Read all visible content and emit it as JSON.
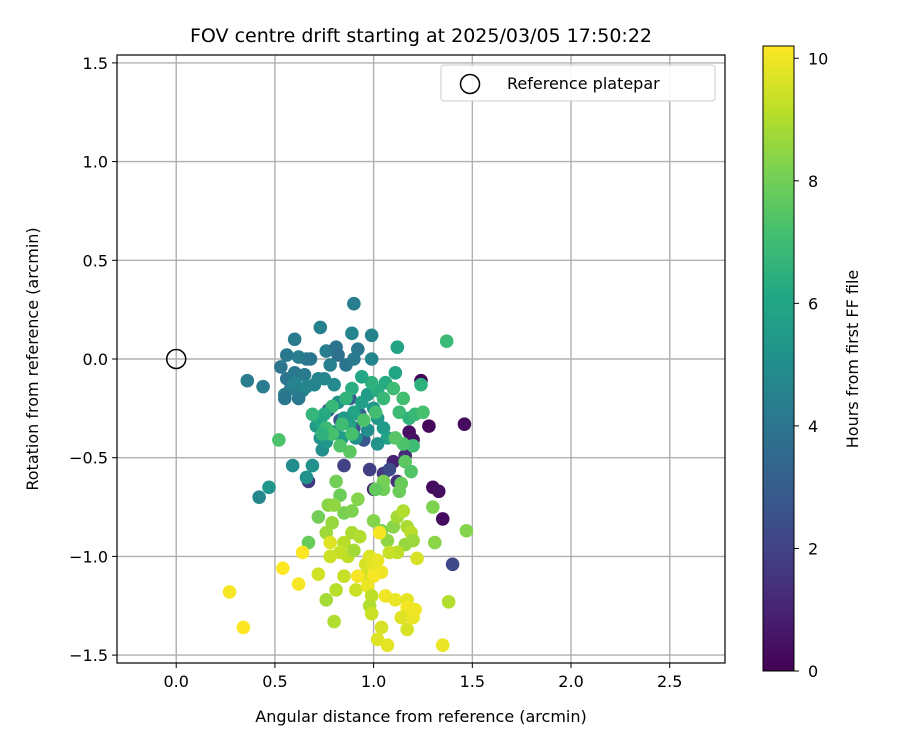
{
  "chart_data": {
    "type": "scatter",
    "title": "FOV centre drift starting at 2025/03/05 17:50:22",
    "xlabel": "Angular distance from reference (arcmin)",
    "ylabel": "Rotation from reference (arcmin)",
    "xlim": [
      -0.3,
      2.78
    ],
    "ylim": [
      -1.54,
      1.54
    ],
    "xticks": [
      0.0,
      0.5,
      1.0,
      1.5,
      2.0,
      2.5
    ],
    "xtick_labels": [
      "0.0",
      "0.5",
      "1.0",
      "1.5",
      "2.0",
      "2.5"
    ],
    "yticks": [
      -1.5,
      -1.0,
      -0.5,
      0.0,
      0.5,
      1.0,
      1.5
    ],
    "ytick_labels": [
      "−1.5",
      "−1.0",
      "−0.5",
      "0.0",
      "0.5",
      "1.0",
      "1.5"
    ],
    "grid": true,
    "legend": {
      "position": "upper right",
      "entries": [
        "Reference platepar"
      ]
    },
    "reference_point": {
      "x": 0.0,
      "y": 0.0,
      "marker": "open-circle",
      "color": "#000000"
    },
    "colorbar": {
      "label": "Hours from first FF file",
      "colormap": "viridis",
      "range": [
        0,
        10.2
      ],
      "ticks": [
        0,
        2,
        4,
        6,
        8,
        10
      ],
      "tick_labels": [
        "0",
        "2",
        "4",
        "6",
        "8",
        "10"
      ]
    },
    "points": [
      {
        "x": 1.24,
        "y": -0.11,
        "h": 0.1
      },
      {
        "x": 1.28,
        "y": -0.34,
        "h": 0.2
      },
      {
        "x": 1.46,
        "y": -0.33,
        "h": 0.3
      },
      {
        "x": 1.3,
        "y": -0.65,
        "h": 0.3
      },
      {
        "x": 1.33,
        "y": -0.67,
        "h": 0.4
      },
      {
        "x": 1.35,
        "y": -0.81,
        "h": 0.3
      },
      {
        "x": 1.18,
        "y": -0.37,
        "h": 0.4
      },
      {
        "x": 1.2,
        "y": -0.41,
        "h": 0.5
      },
      {
        "x": 1.1,
        "y": -0.52,
        "h": 1.0
      },
      {
        "x": 1.16,
        "y": -0.49,
        "h": 1.2
      },
      {
        "x": 1.0,
        "y": -0.66,
        "h": 1.0
      },
      {
        "x": 1.12,
        "y": -0.62,
        "h": 1.5
      },
      {
        "x": 1.05,
        "y": -0.58,
        "h": 1.6
      },
      {
        "x": 0.98,
        "y": -0.56,
        "h": 1.9
      },
      {
        "x": 0.85,
        "y": -0.54,
        "h": 2.0
      },
      {
        "x": 0.67,
        "y": -0.62,
        "h": 1.7
      },
      {
        "x": 1.4,
        "y": -1.04,
        "h": 2.2
      },
      {
        "x": 1.08,
        "y": -0.56,
        "h": 2.3
      },
      {
        "x": 0.9,
        "y": -0.35,
        "h": 2.5
      },
      {
        "x": 0.83,
        "y": -0.31,
        "h": 2.6
      },
      {
        "x": 0.95,
        "y": -0.41,
        "h": 2.8
      },
      {
        "x": 0.77,
        "y": -0.26,
        "h": 3.0
      },
      {
        "x": 0.88,
        "y": -0.2,
        "h": 3.1
      },
      {
        "x": 0.93,
        "y": -0.28,
        "h": 3.2
      },
      {
        "x": 0.9,
        "y": 0.28,
        "h": 4.3
      },
      {
        "x": 0.99,
        "y": 0.12,
        "h": 4.5
      },
      {
        "x": 0.89,
        "y": 0.13,
        "h": 4.6
      },
      {
        "x": 0.73,
        "y": 0.16,
        "h": 4.4
      },
      {
        "x": 0.6,
        "y": 0.1,
        "h": 4.2
      },
      {
        "x": 0.56,
        "y": 0.02,
        "h": 4.1
      },
      {
        "x": 0.62,
        "y": 0.01,
        "h": 4.3
      },
      {
        "x": 0.66,
        "y": 0.0,
        "h": 4.2
      },
      {
        "x": 0.53,
        "y": -0.04,
        "h": 4.0
      },
      {
        "x": 0.56,
        "y": -0.1,
        "h": 4.0
      },
      {
        "x": 0.6,
        "y": -0.07,
        "h": 4.1
      },
      {
        "x": 0.65,
        "y": -0.08,
        "h": 4.2
      },
      {
        "x": 0.68,
        "y": 0.0,
        "h": 4.0
      },
      {
        "x": 0.76,
        "y": 0.04,
        "h": 4.3
      },
      {
        "x": 0.81,
        "y": 0.06,
        "h": 3.9
      },
      {
        "x": 0.82,
        "y": 0.02,
        "h": 3.8
      },
      {
        "x": 0.86,
        "y": -0.03,
        "h": 4.0
      },
      {
        "x": 0.92,
        "y": 0.05,
        "h": 4.1
      },
      {
        "x": 0.99,
        "y": 0.0,
        "h": 4.6
      },
      {
        "x": 0.9,
        "y": 0.0,
        "h": 4.2
      },
      {
        "x": 0.78,
        "y": -0.03,
        "h": 4.4
      },
      {
        "x": 0.72,
        "y": -0.1,
        "h": 4.5
      },
      {
        "x": 0.7,
        "y": -0.13,
        "h": 4.6
      },
      {
        "x": 0.64,
        "y": -0.16,
        "h": 4.4
      },
      {
        "x": 0.58,
        "y": -0.15,
        "h": 4.3
      },
      {
        "x": 0.55,
        "y": -0.18,
        "h": 4.2
      },
      {
        "x": 0.55,
        "y": -0.2,
        "h": 4.0
      },
      {
        "x": 0.62,
        "y": -0.2,
        "h": 4.1
      },
      {
        "x": 0.6,
        "y": -0.12,
        "h": 4.5
      },
      {
        "x": 0.66,
        "y": -0.14,
        "h": 4.6
      },
      {
        "x": 0.75,
        "y": -0.1,
        "h": 4.7
      },
      {
        "x": 0.8,
        "y": -0.13,
        "h": 4.8
      },
      {
        "x": 0.36,
        "y": -0.11,
        "h": 4.3
      },
      {
        "x": 0.44,
        "y": -0.14,
        "h": 4.2
      },
      {
        "x": 0.42,
        "y": -0.7,
        "h": 4.7
      },
      {
        "x": 0.47,
        "y": -0.65,
        "h": 5.3
      },
      {
        "x": 0.59,
        "y": -0.54,
        "h": 4.9
      },
      {
        "x": 0.66,
        "y": -0.6,
        "h": 5.1
      },
      {
        "x": 0.69,
        "y": -0.54,
        "h": 5.1
      },
      {
        "x": 0.74,
        "y": -0.46,
        "h": 5.0
      },
      {
        "x": 0.73,
        "y": -0.4,
        "h": 5.2
      },
      {
        "x": 0.71,
        "y": -0.34,
        "h": 5.5
      },
      {
        "x": 0.76,
        "y": -0.42,
        "h": 5.3
      },
      {
        "x": 0.8,
        "y": -0.37,
        "h": 5.4
      },
      {
        "x": 0.84,
        "y": -0.4,
        "h": 5.6
      },
      {
        "x": 0.88,
        "y": -0.33,
        "h": 5.8
      },
      {
        "x": 0.9,
        "y": -0.27,
        "h": 5.9
      },
      {
        "x": 0.94,
        "y": -0.22,
        "h": 5.7
      },
      {
        "x": 0.97,
        "y": -0.18,
        "h": 5.6
      },
      {
        "x": 1.0,
        "y": -0.25,
        "h": 5.4
      },
      {
        "x": 1.02,
        "y": -0.3,
        "h": 5.3
      },
      {
        "x": 1.05,
        "y": -0.35,
        "h": 5.6
      },
      {
        "x": 1.07,
        "y": -0.4,
        "h": 5.8
      },
      {
        "x": 1.02,
        "y": -0.43,
        "h": 5.2
      },
      {
        "x": 0.97,
        "y": -0.36,
        "h": 5.0
      },
      {
        "x": 0.91,
        "y": -0.4,
        "h": 5.1
      },
      {
        "x": 0.85,
        "y": -0.3,
        "h": 5.5
      },
      {
        "x": 0.82,
        "y": -0.22,
        "h": 5.2
      },
      {
        "x": 1.12,
        "y": 0.06,
        "h": 5.9
      },
      {
        "x": 1.11,
        "y": -0.07,
        "h": 6.0
      },
      {
        "x": 1.06,
        "y": -0.12,
        "h": 6.2
      },
      {
        "x": 1.02,
        "y": -0.16,
        "h": 6.3
      },
      {
        "x": 0.99,
        "y": -0.12,
        "h": 6.5
      },
      {
        "x": 0.94,
        "y": -0.09,
        "h": 6.1
      },
      {
        "x": 0.89,
        "y": -0.15,
        "h": 6.4
      },
      {
        "x": 0.86,
        "y": -0.2,
        "h": 6.6
      },
      {
        "x": 0.79,
        "y": -0.24,
        "h": 6.8
      },
      {
        "x": 0.75,
        "y": -0.28,
        "h": 6.2
      },
      {
        "x": 0.73,
        "y": -0.32,
        "h": 6.0
      },
      {
        "x": 0.69,
        "y": -0.28,
        "h": 6.7
      },
      {
        "x": 0.76,
        "y": -0.35,
        "h": 6.9
      },
      {
        "x": 0.84,
        "y": -0.33,
        "h": 7.0
      },
      {
        "x": 0.89,
        "y": -0.38,
        "h": 7.2
      },
      {
        "x": 0.95,
        "y": -0.31,
        "h": 7.3
      },
      {
        "x": 1.01,
        "y": -0.27,
        "h": 7.1
      },
      {
        "x": 1.05,
        "y": -0.2,
        "h": 6.8
      },
      {
        "x": 1.1,
        "y": -0.15,
        "h": 7.0
      },
      {
        "x": 1.15,
        "y": -0.2,
        "h": 7.1
      },
      {
        "x": 1.13,
        "y": -0.27,
        "h": 6.9
      },
      {
        "x": 1.18,
        "y": -0.3,
        "h": 6.6
      },
      {
        "x": 1.21,
        "y": -0.28,
        "h": 6.8
      },
      {
        "x": 1.24,
        "y": -0.13,
        "h": 6.5
      },
      {
        "x": 1.25,
        "y": -0.27,
        "h": 7.2
      },
      {
        "x": 1.37,
        "y": 0.09,
        "h": 6.9
      },
      {
        "x": 1.2,
        "y": -0.44,
        "h": 7.0
      },
      {
        "x": 1.15,
        "y": -0.43,
        "h": 7.3
      },
      {
        "x": 1.11,
        "y": -0.4,
        "h": 7.5
      },
      {
        "x": 1.16,
        "y": -0.52,
        "h": 7.6
      },
      {
        "x": 1.19,
        "y": -0.57,
        "h": 7.4
      },
      {
        "x": 1.14,
        "y": -0.63,
        "h": 7.8
      },
      {
        "x": 1.13,
        "y": -0.67,
        "h": 7.9
      },
      {
        "x": 1.05,
        "y": -0.62,
        "h": 8.1
      },
      {
        "x": 1.05,
        "y": -0.66,
        "h": 8.0
      },
      {
        "x": 1.01,
        "y": -0.66,
        "h": 7.7
      },
      {
        "x": 0.88,
        "y": -0.47,
        "h": 7.6
      },
      {
        "x": 0.83,
        "y": -0.44,
        "h": 7.4
      },
      {
        "x": 0.79,
        "y": -0.38,
        "h": 7.2
      },
      {
        "x": 0.74,
        "y": -0.38,
        "h": 6.5
      },
      {
        "x": 0.52,
        "y": -0.41,
        "h": 7.3
      },
      {
        "x": 0.67,
        "y": -0.93,
        "h": 7.8
      },
      {
        "x": 0.81,
        "y": -0.62,
        "h": 8.0
      },
      {
        "x": 0.83,
        "y": -0.69,
        "h": 7.9
      },
      {
        "x": 0.85,
        "y": -0.78,
        "h": 8.1
      },
      {
        "x": 0.89,
        "y": -0.77,
        "h": 8.2
      },
      {
        "x": 0.92,
        "y": -0.71,
        "h": 8.3
      },
      {
        "x": 0.72,
        "y": -0.8,
        "h": 8.0
      },
      {
        "x": 0.77,
        "y": -0.74,
        "h": 8.4
      },
      {
        "x": 0.8,
        "y": -0.74,
        "h": 8.5
      },
      {
        "x": 0.79,
        "y": -0.83,
        "h": 8.6
      },
      {
        "x": 0.76,
        "y": -0.88,
        "h": 8.7
      },
      {
        "x": 1.0,
        "y": -0.82,
        "h": 8.3
      },
      {
        "x": 1.04,
        "y": -0.87,
        "h": 8.2
      },
      {
        "x": 1.07,
        "y": -0.92,
        "h": 8.5
      },
      {
        "x": 1.1,
        "y": -0.85,
        "h": 8.4
      },
      {
        "x": 1.12,
        "y": -0.8,
        "h": 8.8
      },
      {
        "x": 1.15,
        "y": -0.77,
        "h": 9.0
      },
      {
        "x": 1.17,
        "y": -0.85,
        "h": 8.9
      },
      {
        "x": 1.19,
        "y": -0.88,
        "h": 9.1
      },
      {
        "x": 1.2,
        "y": -0.92,
        "h": 8.7
      },
      {
        "x": 1.16,
        "y": -0.94,
        "h": 8.6
      },
      {
        "x": 1.12,
        "y": -0.98,
        "h": 9.2
      },
      {
        "x": 1.08,
        "y": -0.98,
        "h": 9.3
      },
      {
        "x": 1.22,
        "y": -1.01,
        "h": 9.6
      },
      {
        "x": 1.3,
        "y": -0.75,
        "h": 8.2
      },
      {
        "x": 1.31,
        "y": -0.93,
        "h": 8.4
      },
      {
        "x": 1.47,
        "y": -0.87,
        "h": 8.3
      },
      {
        "x": 1.38,
        "y": -1.23,
        "h": 9.0
      },
      {
        "x": 0.89,
        "y": -0.88,
        "h": 8.9
      },
      {
        "x": 0.93,
        "y": -0.9,
        "h": 9.0
      },
      {
        "x": 0.85,
        "y": -0.93,
        "h": 9.1
      },
      {
        "x": 0.83,
        "y": -0.98,
        "h": 9.3
      },
      {
        "x": 0.87,
        "y": -1.0,
        "h": 9.2
      },
      {
        "x": 0.9,
        "y": -0.97,
        "h": 8.8
      },
      {
        "x": 0.78,
        "y": -1.0,
        "h": 9.4
      },
      {
        "x": 0.72,
        "y": -1.09,
        "h": 9.5
      },
      {
        "x": 0.85,
        "y": -1.1,
        "h": 9.3
      },
      {
        "x": 0.81,
        "y": -1.17,
        "h": 9.1
      },
      {
        "x": 0.76,
        "y": -1.22,
        "h": 8.8
      },
      {
        "x": 0.8,
        "y": -1.33,
        "h": 9.0
      },
      {
        "x": 0.91,
        "y": -1.17,
        "h": 9.4
      },
      {
        "x": 0.95,
        "y": -1.1,
        "h": 9.5
      },
      {
        "x": 0.96,
        "y": -1.04,
        "h": 9.6
      },
      {
        "x": 0.98,
        "y": -1.0,
        "h": 9.7
      },
      {
        "x": 1.0,
        "y": -1.05,
        "h": 9.8
      },
      {
        "x": 1.02,
        "y": -1.02,
        "h": 9.9
      },
      {
        "x": 1.04,
        "y": -1.08,
        "h": 10.0
      },
      {
        "x": 1.0,
        "y": -1.1,
        "h": 10.1
      },
      {
        "x": 0.97,
        "y": -1.15,
        "h": 9.9
      },
      {
        "x": 0.99,
        "y": -1.2,
        "h": 9.2
      },
      {
        "x": 0.98,
        "y": -1.25,
        "h": 9.0
      },
      {
        "x": 0.99,
        "y": -1.29,
        "h": 9.4
      },
      {
        "x": 1.02,
        "y": -1.42,
        "h": 9.7
      },
      {
        "x": 1.04,
        "y": -1.36,
        "h": 9.6
      },
      {
        "x": 1.07,
        "y": -1.45,
        "h": 9.8
      },
      {
        "x": 1.06,
        "y": -1.2,
        "h": 10.0
      },
      {
        "x": 1.11,
        "y": -1.22,
        "h": 9.9
      },
      {
        "x": 1.17,
        "y": -1.22,
        "h": 9.8
      },
      {
        "x": 1.17,
        "y": -1.26,
        "h": 10.1
      },
      {
        "x": 1.16,
        "y": -1.3,
        "h": 9.9
      },
      {
        "x": 1.14,
        "y": -1.31,
        "h": 9.7
      },
      {
        "x": 1.2,
        "y": -1.31,
        "h": 9.9
      },
      {
        "x": 1.17,
        "y": -1.37,
        "h": 9.6
      },
      {
        "x": 1.21,
        "y": -1.27,
        "h": 10.0
      },
      {
        "x": 1.35,
        "y": -1.45,
        "h": 9.9
      },
      {
        "x": 1.03,
        "y": -0.88,
        "h": 10.1
      },
      {
        "x": 0.64,
        "y": -0.98,
        "h": 10.2
      },
      {
        "x": 0.62,
        "y": -1.14,
        "h": 10.1
      },
      {
        "x": 0.54,
        "y": -1.06,
        "h": 10.2
      },
      {
        "x": 0.27,
        "y": -1.18,
        "h": 10.1
      },
      {
        "x": 0.34,
        "y": -1.36,
        "h": 10.2
      },
      {
        "x": 0.78,
        "y": -0.93,
        "h": 9.7
      },
      {
        "x": 0.92,
        "y": -1.1,
        "h": 10.1
      }
    ]
  }
}
